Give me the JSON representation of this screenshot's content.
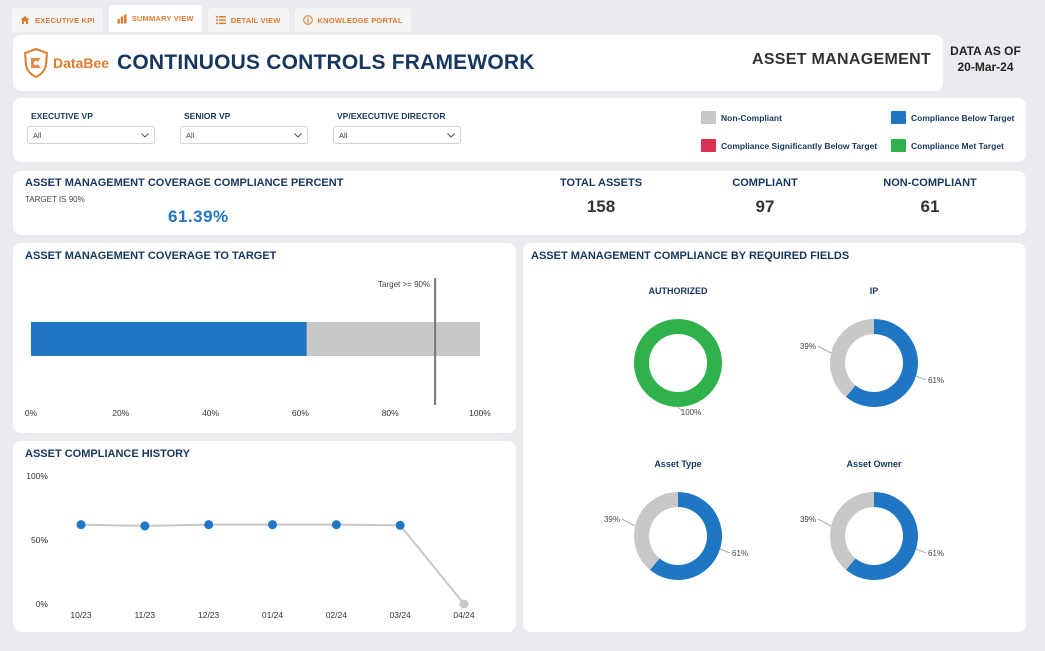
{
  "tabs": [
    {
      "label": "EXECUTIVE KPI",
      "icon": "home-icon",
      "active": false
    },
    {
      "label": "SUMMARY VIEW",
      "icon": "bar-chart-icon",
      "active": true
    },
    {
      "label": "DETAIL VIEW",
      "icon": "list-icon",
      "active": false
    },
    {
      "label": "KNOWLEDGE PORTAL",
      "icon": "info-icon",
      "active": false
    }
  ],
  "header": {
    "logo_text": "DataBee",
    "title": "CONTINUOUS CONTROLS FRAMEWORK",
    "section": "ASSET MANAGEMENT",
    "data_as_of_label": "DATA AS OF",
    "data_as_of_date": "20-Mar-24"
  },
  "filters": [
    {
      "label": "EXECUTIVE VP",
      "value": "All"
    },
    {
      "label": "SENIOR VP",
      "value": "All"
    },
    {
      "label": "VP/EXECUTIVE DIRECTOR",
      "value": "All"
    }
  ],
  "legend": [
    {
      "label": "Non-Compliant",
      "color": "#c8c8c8"
    },
    {
      "label": "Compliance Below Target",
      "color": "#1f77c4"
    },
    {
      "label": "Compliance Significantly Below Target",
      "color": "#d9344f"
    },
    {
      "label": "Compliance Met Target",
      "color": "#2fb24c"
    }
  ],
  "kpis": {
    "title": "ASSET MANAGEMENT COVERAGE COMPLIANCE PERCENT",
    "target_text": "TARGET IS 90%",
    "percent": "61.39%",
    "total_label": "TOTAL ASSETS",
    "total_value": "158",
    "compliant_label": "COMPLIANT",
    "compliant_value": "97",
    "noncompliant_label": "NON-COMPLIANT",
    "noncompliant_value": "61"
  },
  "coverage": {
    "title": "ASSET MANAGEMENT COVERAGE TO TARGET",
    "value": 61.39,
    "target": 90,
    "target_label": "Target >= 90%",
    "ticks": [
      "0%",
      "20%",
      "40%",
      "60%",
      "80%",
      "100%"
    ],
    "bar_color": "#1f77c4",
    "track_color": "#c8c8c8"
  },
  "chart_data": [
    {
      "type": "line",
      "title": "ASSET COMPLIANCE HISTORY",
      "categories": [
        "10/23",
        "11/23",
        "12/23",
        "01/24",
        "02/24",
        "03/24",
        "04/24"
      ],
      "values": [
        62,
        61,
        62,
        62,
        62,
        61.5,
        0
      ],
      "yticks": [
        "0%",
        "50%",
        "100%"
      ],
      "ylim": [
        0,
        100
      ],
      "point_color": "#1f77c4",
      "line_color": "#c8c8c8"
    },
    {
      "type": "pie",
      "title": "ASSET MANAGEMENT COMPLIANCE BY REQUIRED FIELDS",
      "donuts": [
        {
          "name": "AUTHORIZED",
          "compliant": 100,
          "noncompliant": 0,
          "compliant_label": "100%",
          "noncompliant_label": "",
          "color": "#2fb24c"
        },
        {
          "name": "IP",
          "compliant": 61,
          "noncompliant": 39,
          "compliant_label": "61%",
          "noncompliant_label": "39%",
          "color": "#1f77c4"
        },
        {
          "name": "Asset Type",
          "compliant": 61,
          "noncompliant": 39,
          "compliant_label": "61%",
          "noncompliant_label": "39%",
          "color": "#1f77c4"
        },
        {
          "name": "Asset Owner",
          "compliant": 61,
          "noncompliant": 39,
          "compliant_label": "61%",
          "noncompliant_label": "39%",
          "color": "#1f77c4"
        }
      ]
    }
  ]
}
